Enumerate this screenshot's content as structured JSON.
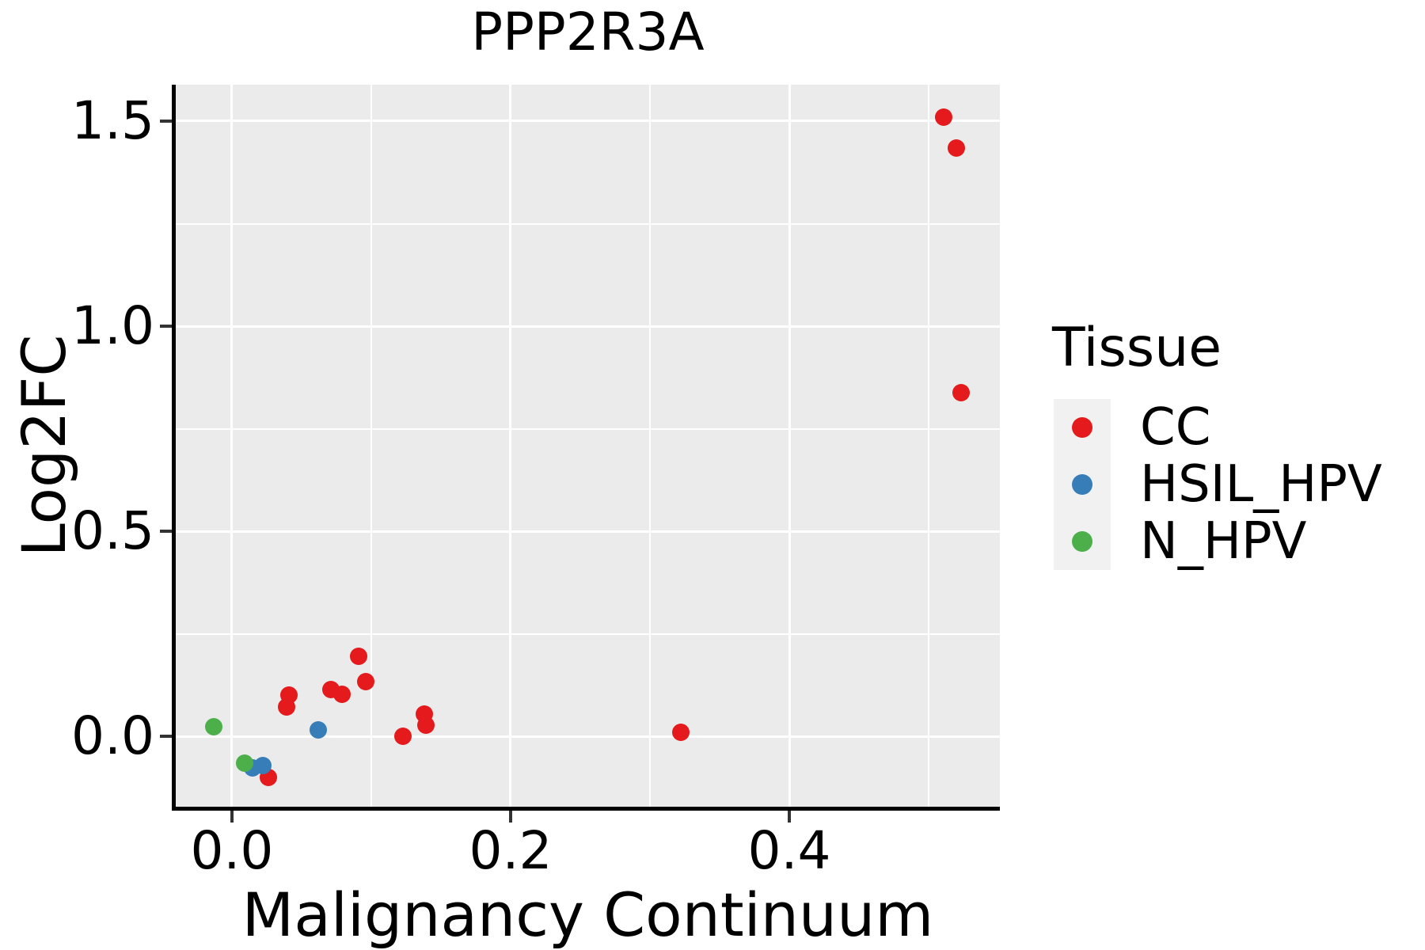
{
  "chart_data": {
    "type": "scatter",
    "title": "PPP2R3A",
    "xlabel": "Malignancy Continuum",
    "ylabel": "Log2FC",
    "xlim": [
      -0.0403,
      0.5511
    ],
    "ylim": [
      -0.1718,
      1.5888
    ],
    "x_ticks": [
      0.0,
      0.2,
      0.4
    ],
    "y_ticks": [
      0.0,
      0.5,
      1.0,
      1.5
    ],
    "x_minor_ticks": [
      0.1,
      0.3,
      0.5
    ],
    "y_minor_ticks": [
      0.25,
      0.75,
      1.25
    ],
    "grid": true,
    "legend_title": "Tissue",
    "legend_position": "right",
    "panel_background": "#EBEBEB",
    "gridline_color": "#FFFFFF",
    "series": [
      {
        "name": "CC",
        "color": "#E41A1C",
        "points": [
          [
            0.511,
            1.51
          ],
          [
            0.52,
            1.435
          ],
          [
            0.523,
            0.838
          ],
          [
            0.322,
            0.01
          ],
          [
            0.123,
            0.0
          ],
          [
            0.138,
            0.055
          ],
          [
            0.139,
            0.028
          ],
          [
            0.091,
            0.195
          ],
          [
            0.096,
            0.133
          ],
          [
            0.071,
            0.114
          ],
          [
            0.079,
            0.102
          ],
          [
            0.041,
            0.1
          ],
          [
            0.039,
            0.071
          ],
          [
            0.026,
            -0.1
          ]
        ]
      },
      {
        "name": "HSIL_HPV",
        "color": "#377EB8",
        "points": [
          [
            0.015,
            -0.078
          ],
          [
            0.022,
            -0.072
          ],
          [
            0.062,
            0.015
          ]
        ]
      },
      {
        "name": "N_HPV",
        "color": "#4DAF4A",
        "points": [
          [
            -0.013,
            0.023
          ],
          [
            0.009,
            -0.066
          ]
        ]
      }
    ]
  }
}
